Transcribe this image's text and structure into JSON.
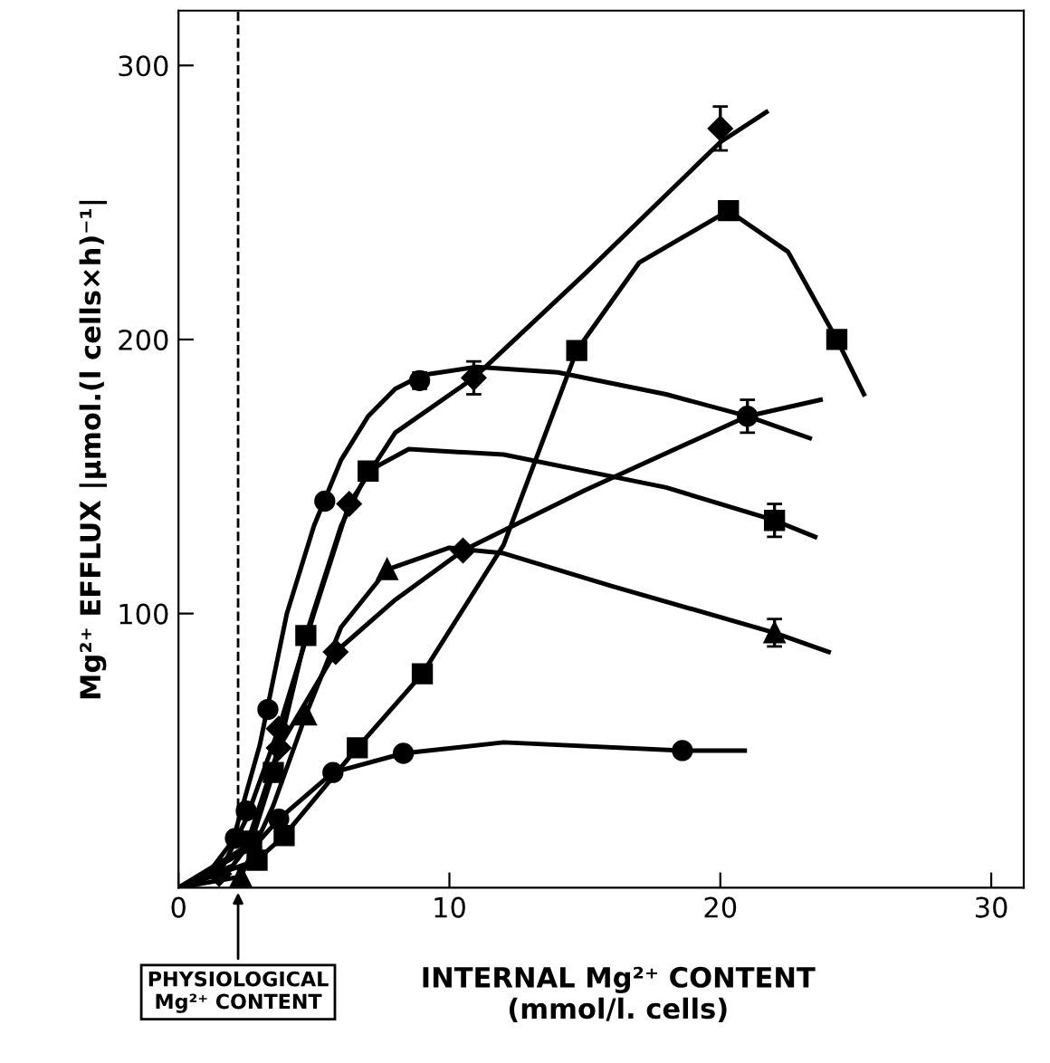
{
  "chart_data": {
    "type": "scatter",
    "xlabel": "INTERNAL Mg²⁺ CONTENT\n(mmol/l. cells)",
    "ylabel": "Mg²⁺ EFFLUX |µmol.(l cells×h)⁻¹|",
    "xlim": [
      0,
      31.2
    ],
    "ylim": [
      0,
      320
    ],
    "xticks": [
      0,
      10,
      20,
      30
    ],
    "yticks": [
      100,
      200,
      300
    ],
    "grid": false,
    "legend": false,
    "ref_lines": [
      {
        "axis": "x",
        "value": 2.2,
        "label": "PHYSIOLOGICAL\nMg²⁺ CONTENT",
        "line_style": "dashed",
        "color": "#000000"
      }
    ],
    "series": [
      {
        "type": "line",
        "color": "#000000",
        "marker": "none",
        "x": [
          0,
          1,
          2,
          3,
          4,
          5,
          6,
          7,
          8,
          9,
          11,
          14,
          18,
          21,
          23.3
        ],
        "values": [
          0,
          4,
          17,
          52,
          100,
          132,
          156,
          172,
          182,
          187,
          190,
          188,
          180,
          172,
          164
        ]
      },
      {
        "type": "line",
        "color": "#000000",
        "marker": "none",
        "x": [
          0,
          1.5,
          2.5,
          3.7,
          5,
          6.3,
          8,
          10.9,
          15,
          20,
          21.7
        ],
        "values": [
          0,
          5,
          25,
          58,
          100,
          140,
          166,
          186,
          224,
          272,
          283
        ]
      },
      {
        "type": "line",
        "color": "#000000",
        "marker": "none",
        "x": [
          0,
          2,
          2.7,
          3.5,
          4.7,
          6,
          7,
          8.5,
          12,
          18,
          22,
          23.5
        ],
        "values": [
          0,
          8,
          17,
          42,
          92,
          132,
          152,
          160,
          158,
          146,
          134,
          128
        ]
      },
      {
        "type": "line",
        "color": "#000000",
        "marker": "none",
        "x": [
          0,
          2.3,
          3.5,
          4.7,
          6,
          7.7,
          10,
          12,
          16,
          22,
          24
        ],
        "values": [
          0,
          4,
          30,
          63,
          95,
          116,
          124,
          122,
          110,
          93,
          86
        ]
      },
      {
        "type": "line",
        "color": "#000000",
        "marker": "none",
        "x": [
          0,
          2.5,
          3.7,
          5.8,
          8,
          10.5,
          15,
          21,
          23.7
        ],
        "values": [
          0,
          15,
          51,
          86,
          105,
          123,
          145,
          172,
          178
        ]
      },
      {
        "type": "line",
        "color": "#000000",
        "marker": "none",
        "x": [
          0,
          2.9,
          3.9,
          6.6,
          9,
          12,
          14.7,
          17,
          20.3,
          22.5,
          24.3,
          25.3
        ],
        "values": [
          0,
          10,
          19,
          51,
          78,
          125,
          196,
          228,
          247,
          232,
          200,
          180
        ]
      },
      {
        "type": "line",
        "color": "#000000",
        "marker": "none",
        "x": [
          0,
          2.8,
          3.7,
          5.7,
          8.3,
          12,
          18.6,
          20.9
        ],
        "values": [
          0,
          15,
          25,
          42,
          49,
          53,
          50,
          50
        ]
      },
      {
        "color": "#000000",
        "marker": "circle",
        "x": [
          2.1,
          2.5,
          3.3,
          5.4,
          8.9,
          21
        ],
        "values": [
          18,
          28,
          65,
          141,
          185,
          172
        ],
        "errors": [
          null,
          null,
          null,
          null,
          3,
          6
        ]
      },
      {
        "color": "#000000",
        "marker": "diamond",
        "x": [
          1.5,
          3.7,
          6.3,
          10.9,
          20
        ],
        "values": [
          5,
          58,
          140,
          186,
          277
        ],
        "errors": [
          null,
          null,
          null,
          6,
          8
        ]
      },
      {
        "color": "#000000",
        "marker": "square",
        "x": [
          2.7,
          3.5,
          4.7,
          7,
          22
        ],
        "values": [
          17,
          42,
          92,
          152,
          134
        ],
        "errors": [
          null,
          null,
          null,
          null,
          6
        ]
      },
      {
        "color": "#000000",
        "marker": "triangle",
        "x": [
          2.3,
          4.7,
          7.7,
          22
        ],
        "values": [
          4,
          63,
          116,
          93
        ],
        "errors": [
          null,
          null,
          null,
          5
        ]
      },
      {
        "color": "#000000",
        "marker": "diamond",
        "x": [
          3.7,
          5.8,
          10.5
        ],
        "values": [
          51,
          86,
          123
        ]
      },
      {
        "color": "#000000",
        "marker": "square",
        "x": [
          2.9,
          3.9,
          6.6,
          9,
          14.7,
          20.3,
          24.3
        ],
        "values": [
          10,
          19,
          51,
          78,
          196,
          247,
          200
        ]
      },
      {
        "color": "#000000",
        "marker": "circle",
        "x": [
          3.7,
          5.7,
          8.3,
          18.6
        ],
        "values": [
          25,
          42,
          49,
          50
        ]
      }
    ]
  }
}
